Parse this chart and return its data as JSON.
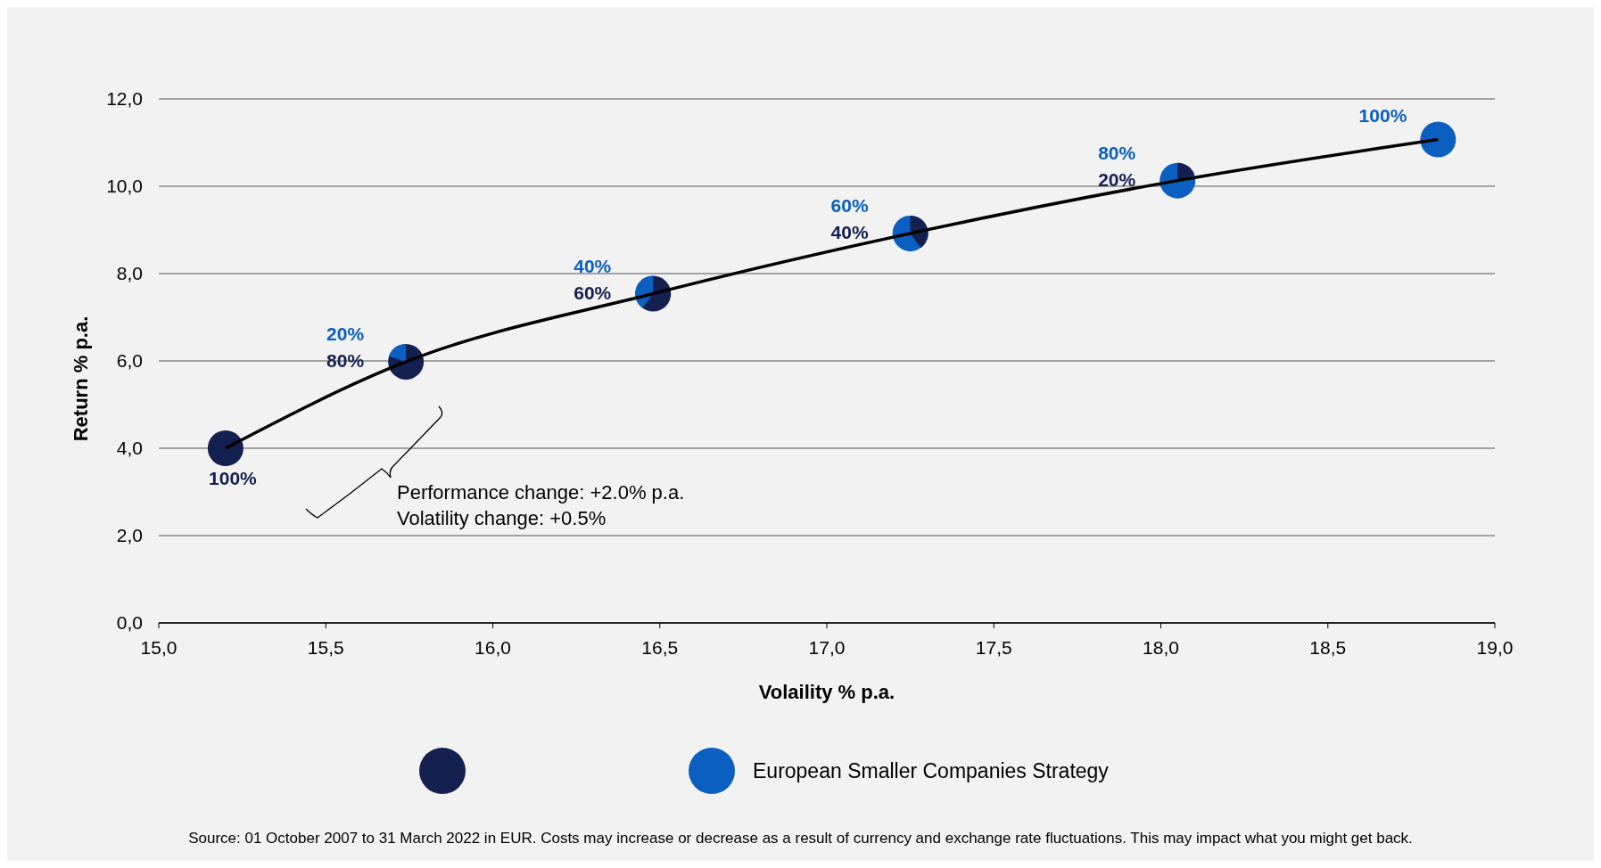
{
  "chart_data": {
    "type": "scatter",
    "xlabel": "Volaility % p.a.",
    "ylabel": "Return % p.a.",
    "series": [
      {
        "type": "line",
        "color": "#000000",
        "x": [
          15.2,
          15.74,
          16.48,
          17.25,
          18.05,
          18.83
        ],
        "values": [
          4.0,
          5.98,
          7.54,
          8.92,
          10.13,
          11.07
        ]
      },
      {
        "color": "#14204f",
        "x": [
          15.2,
          15.74,
          16.48
        ],
        "values": [
          4.0,
          5.98,
          7.54
        ]
      },
      {
        "name": "European Smaller Companies Strategy",
        "color": "#0a5fc0",
        "x": [
          17.25,
          18.05,
          18.83
        ],
        "values": [
          8.92,
          10.13,
          11.07
        ]
      }
    ],
    "xlim": [
      15.0,
      19.0
    ],
    "xticks": [
      {
        "value": 15,
        "label": "15,0"
      },
      {
        "value": 15.5,
        "label": "15,5"
      },
      {
        "value": 16,
        "label": "16,0"
      },
      {
        "value": 16.5,
        "label": "16,5"
      },
      {
        "value": 17,
        "label": "17,0"
      },
      {
        "value": 17.5,
        "label": "17,5"
      },
      {
        "value": 18,
        "label": "18,0"
      },
      {
        "value": 18.5,
        "label": "18,5"
      },
      {
        "value": 19,
        "label": "19,0"
      }
    ],
    "ylim": [
      0,
      12
    ],
    "yticks": [
      {
        "value": 0,
        "label": "0,0"
      },
      {
        "value": 2,
        "label": "2,0"
      },
      {
        "value": 4,
        "label": "4,0"
      },
      {
        "value": 6,
        "label": "6,0"
      },
      {
        "value": 8,
        "label": "8,0"
      },
      {
        "value": 10,
        "label": "10,0"
      },
      {
        "value": 12,
        "label": "12,0"
      }
    ],
    "grid": "y",
    "legend": "bottom",
    "annotations": [
      {
        "text": "100%",
        "x": 15.2,
        "y": 4.0
      },
      {
        "text": "80%",
        "x": 15.74,
        "y": 5.98
      },
      {
        "text": "20%",
        "x": 15.74,
        "y": 5.98
      },
      {
        "text": "60%",
        "x": 16.48,
        "y": 7.54
      },
      {
        "text": "40%",
        "x": 16.48,
        "y": 7.54
      },
      {
        "text": "40%",
        "x": 17.25,
        "y": 8.92
      },
      {
        "text": "60%",
        "x": 17.25,
        "y": 8.92
      },
      {
        "text": "20%",
        "x": 18.05,
        "y": 10.13
      },
      {
        "text": "80%",
        "x": 18.05,
        "y": 10.13
      },
      {
        "text": "100%",
        "x": 18.83,
        "y": 11.07
      },
      "Performance change: +2.0% p.a.",
      "Volatility change: +0.5%",
      "Source: 01 October 2007 to 31 March 2022 in EUR. Costs may increase or decrease as a result of currency and exchange rate fluctuations. This may impact what you might get back."
    ]
  }
}
